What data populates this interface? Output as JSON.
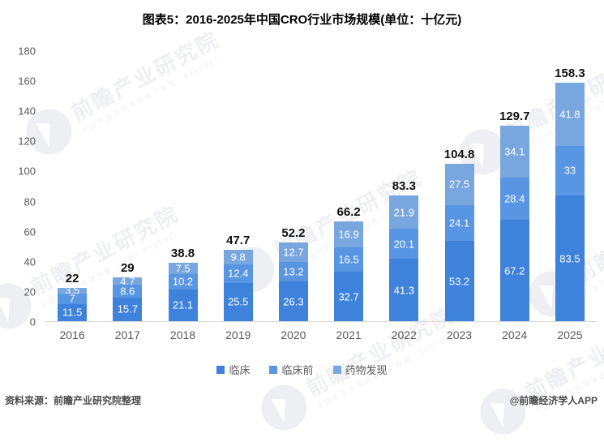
{
  "title": "图表5：2016-2025年中国CRO行业市场规模(单位：十亿元)",
  "chart_data": {
    "type": "bar",
    "stacked": true,
    "title": "图表5：2016-2025年中国CRO行业市场规模(单位：十亿元)",
    "categories": [
      "2016",
      "2017",
      "2018",
      "2019",
      "2020",
      "2021",
      "2022",
      "2023",
      "2024",
      "2025"
    ],
    "series": [
      {
        "name": "临床",
        "color": "#3E82DB",
        "values": [
          11.5,
          15.7,
          21.1,
          25.5,
          26.3,
          32.7,
          41.3,
          53.2,
          67.2,
          83.5
        ]
      },
      {
        "name": "临床前",
        "color": "#5895E2",
        "values": [
          7,
          8.6,
          10.2,
          12.4,
          13.2,
          16.5,
          20.1,
          24.1,
          28.4,
          33
        ]
      },
      {
        "name": "药物发现",
        "color": "#78A7E0",
        "values": [
          3.5,
          4.7,
          7.5,
          9.8,
          12.7,
          16.9,
          21.9,
          27.5,
          34.1,
          41.8
        ]
      }
    ],
    "totals": [
      22,
      29,
      38.8,
      47.7,
      52.2,
      66.2,
      83.3,
      104.8,
      129.7,
      158.3
    ],
    "ylim": [
      0,
      180
    ],
    "yticks": [
      0,
      20,
      40,
      60,
      80,
      100,
      120,
      140,
      160,
      180
    ],
    "grid": false,
    "legend_position": "bottom"
  },
  "footer": {
    "source": "资料来源：前瞻产业研究院整理",
    "credit": "@前瞻经济学人APP"
  },
  "watermark": {
    "text": "前瞻产业研究院",
    "subtext": "中国产业咨询领导者（股票：839599）"
  }
}
